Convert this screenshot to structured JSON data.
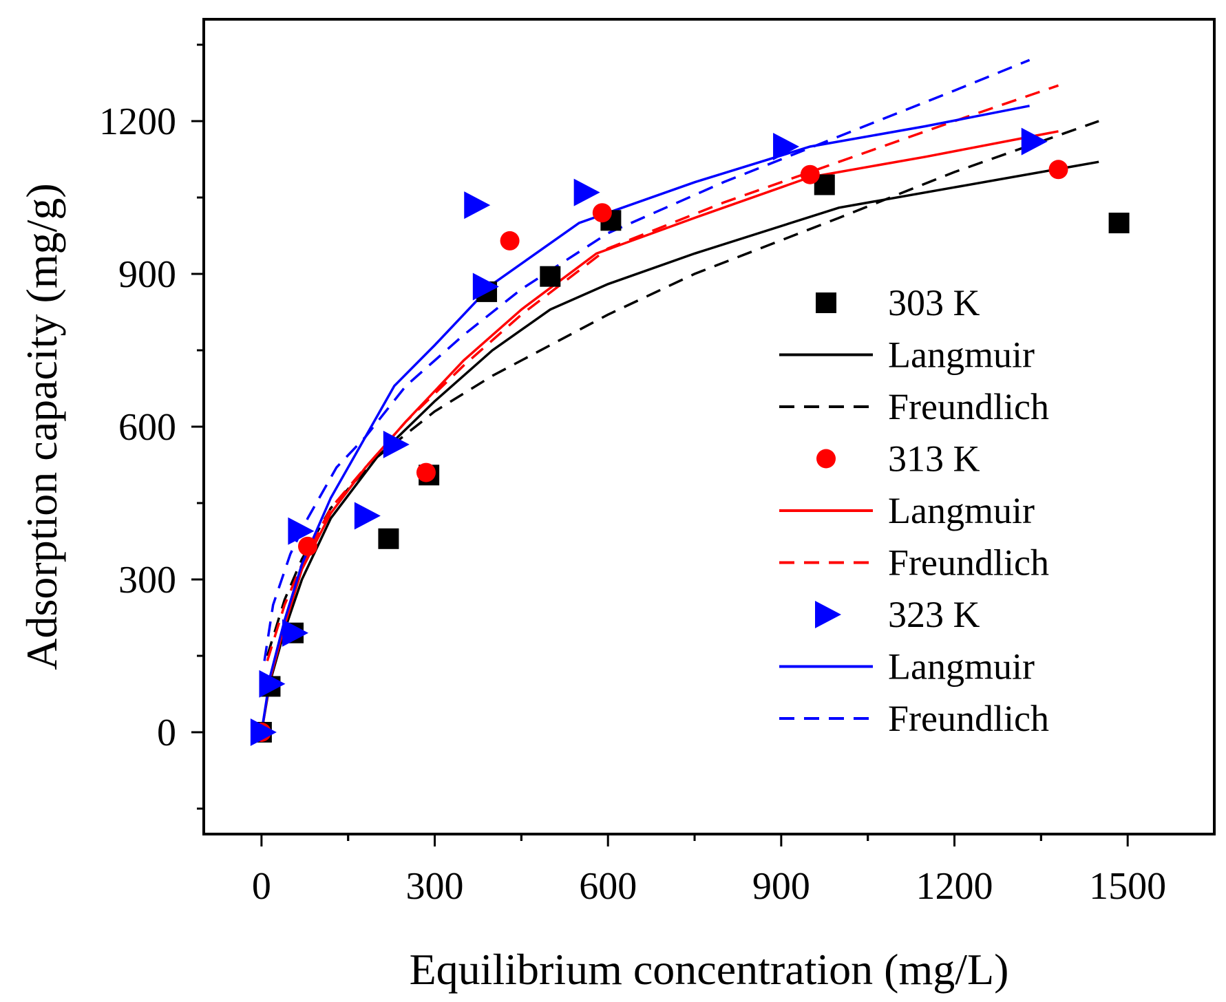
{
  "chart_data": {
    "type": "scatter",
    "xlabel": "Equilibrium concentration (mg/L)",
    "ylabel": "Adsorption capacity (mg/g)",
    "xlim": [
      -100,
      1650
    ],
    "ylim": [
      -200,
      1400
    ],
    "xticks": [
      "0",
      "300",
      "600",
      "900",
      "1200",
      "1500"
    ],
    "yticks": [
      "0",
      "300",
      "600",
      "900",
      "1200"
    ],
    "legend_position": "right",
    "series": [
      {
        "name": "303 K",
        "kind": "points",
        "marker": "square",
        "color": "#000000",
        "x": [
          0,
          15,
          55,
          220,
          290,
          390,
          500,
          605,
          975,
          1485
        ],
        "y": [
          0,
          90,
          195,
          380,
          505,
          865,
          895,
          1005,
          1075,
          1000
        ]
      },
      {
        "name": "Langmuir",
        "kind": "line",
        "dash": "solid",
        "color": "#000000",
        "x": [
          0,
          15,
          40,
          70,
          120,
          200,
          300,
          400,
          500,
          600,
          750,
          1000,
          1200,
          1450
        ],
        "y": [
          0,
          100,
          200,
          300,
          420,
          540,
          650,
          750,
          830,
          880,
          940,
          1030,
          1070,
          1120
        ]
      },
      {
        "name": "Freundlich",
        "kind": "line",
        "dash": "dashed",
        "color": "#000000",
        "x": [
          10,
          40,
          70,
          120,
          200,
          300,
          400,
          500,
          600,
          750,
          1000,
          1200,
          1450
        ],
        "y": [
          150,
          260,
          340,
          440,
          540,
          630,
          700,
          760,
          820,
          900,
          1010,
          1100,
          1200
        ]
      },
      {
        "name": "313 K",
        "kind": "points",
        "marker": "circle",
        "color": "#ff0000",
        "x": [
          0,
          80,
          285,
          430,
          590,
          950,
          1380
        ],
        "y": [
          0,
          365,
          510,
          965,
          1020,
          1095,
          1105
        ]
      },
      {
        "name": "Langmuir",
        "kind": "line",
        "dash": "solid",
        "color": "#ff0000",
        "x": [
          0,
          15,
          40,
          70,
          120,
          180,
          250,
          350,
          450,
          580,
          750,
          950,
          1150,
          1380
        ],
        "y": [
          0,
          105,
          210,
          320,
          430,
          520,
          610,
          730,
          830,
          940,
          1010,
          1090,
          1130,
          1180
        ]
      },
      {
        "name": "Freundlich",
        "kind": "line",
        "dash": "dashed",
        "color": "#ff0000",
        "x": [
          10,
          40,
          70,
          120,
          180,
          250,
          350,
          450,
          600,
          800,
          1000,
          1200,
          1380
        ],
        "y": [
          140,
          250,
          330,
          440,
          520,
          610,
          720,
          820,
          950,
          1040,
          1120,
          1200,
          1270
        ]
      },
      {
        "name": "323 K",
        "kind": "points",
        "marker": "triangle-right",
        "color": "#0000ff",
        "x": [
          0,
          15,
          55,
          65,
          180,
          230,
          370,
          385,
          560,
          905,
          1335
        ],
        "y": [
          0,
          95,
          195,
          395,
          425,
          565,
          1035,
          875,
          1060,
          1150,
          1160
        ]
      },
      {
        "name": "Langmuir",
        "kind": "line",
        "dash": "solid",
        "color": "#0000ff",
        "x": [
          0,
          15,
          40,
          70,
          120,
          180,
          230,
          300,
          400,
          550,
          750,
          950,
          1150,
          1330
        ],
        "y": [
          0,
          110,
          220,
          330,
          460,
          580,
          680,
          760,
          880,
          1000,
          1080,
          1150,
          1190,
          1230
        ]
      },
      {
        "name": "Freundlich",
        "kind": "line",
        "dash": "dashed",
        "color": "#0000ff",
        "x": [
          5,
          20,
          50,
          80,
          130,
          180,
          250,
          350,
          450,
          600,
          800,
          1000,
          1200,
          1330
        ],
        "y": [
          140,
          250,
          350,
          420,
          520,
          580,
          680,
          780,
          870,
          980,
          1080,
          1170,
          1260,
          1320
        ]
      }
    ]
  }
}
